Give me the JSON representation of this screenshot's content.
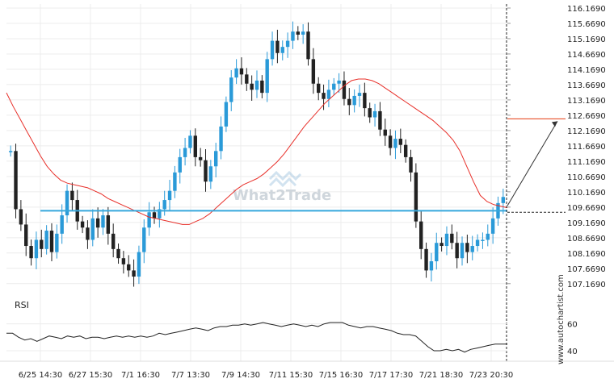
{
  "chart_data": {
    "type": "candlestick",
    "y_ticks": [
      "116.1690",
      "115.6690",
      "115.1690",
      "114.6690",
      "114.1690",
      "113.6690",
      "113.1690",
      "112.6690",
      "112.1690",
      "111.6690",
      "111.1690",
      "110.6690",
      "110.1690",
      "109.6690",
      "109.1690",
      "108.6690",
      "108.1690",
      "107.6690",
      "107.1690"
    ],
    "ylim": [
      106.9,
      116.3
    ],
    "x_ticks": [
      "6/25 14:30",
      "6/27 15:30",
      "7/1 16:30",
      "7/7 13:30",
      "7/9 14:30",
      "7/11 15:30",
      "7/15 16:30",
      "7/17 17:30",
      "7/21 18:30",
      "7/23 20:30"
    ],
    "close": [
      111.5,
      109.6,
      109.1,
      108.4,
      108.0,
      108.6,
      108.3,
      108.9,
      108.2,
      108.8,
      109.4,
      110.2,
      109.9,
      109.2,
      109.0,
      108.6,
      109.3,
      109.0,
      109.4,
      108.8,
      108.3,
      108.0,
      107.8,
      107.6,
      107.4,
      108.2,
      109.0,
      109.5,
      109.3,
      109.6,
      109.9,
      110.2,
      110.8,
      111.3,
      111.6,
      112.0,
      111.3,
      111.2,
      110.5,
      111.0,
      111.5,
      112.3,
      113.1,
      113.9,
      114.2,
      114.0,
      113.7,
      113.5,
      113.8,
      113.4,
      114.5,
      115.1,
      114.7,
      114.9,
      115.1,
      115.4,
      115.3,
      115.4,
      114.5,
      113.7,
      113.4,
      113.2,
      113.5,
      113.7,
      113.8,
      113.2,
      113.0,
      113.3,
      113.4,
      112.9,
      112.6,
      112.8,
      112.2,
      112.0,
      111.6,
      111.9,
      111.7,
      111.3,
      110.8,
      109.2,
      108.3,
      107.6,
      107.9,
      108.5,
      108.4,
      108.8,
      108.5,
      108.0,
      108.5,
      108.2,
      108.4,
      108.6,
      108.6,
      108.8,
      109.3,
      109.8,
      110.0
    ],
    "ma_line": [
      113.4,
      112.95,
      112.55,
      112.15,
      111.75,
      111.35,
      111.0,
      110.75,
      110.55,
      110.45,
      110.4,
      110.35,
      110.3,
      110.2,
      110.1,
      109.95,
      109.85,
      109.75,
      109.65,
      109.55,
      109.45,
      109.35,
      109.3,
      109.25,
      109.2,
      109.15,
      109.1,
      109.1,
      109.2,
      109.3,
      109.45,
      109.65,
      109.85,
      110.05,
      110.25,
      110.4,
      110.5,
      110.6,
      110.75,
      110.95,
      111.15,
      111.4,
      111.7,
      112.0,
      112.3,
      112.55,
      112.8,
      113.05,
      113.25,
      113.45,
      113.65,
      113.8,
      113.85,
      113.85,
      113.8,
      113.7,
      113.55,
      113.4,
      113.25,
      113.1,
      112.95,
      112.8,
      112.65,
      112.5,
      112.3,
      112.1,
      111.85,
      111.5,
      111.0,
      110.5,
      110.05,
      109.85,
      109.75,
      109.7,
      109.65
    ],
    "support_level": 109.55,
    "current_price": 109.5,
    "forecast_level": 112.55,
    "rsi": {
      "label": "RSI",
      "ylim": [
        34,
        70
      ],
      "ticks": [
        "60",
        "40"
      ],
      "values": [
        53,
        53,
        50,
        48,
        49,
        47,
        49,
        51,
        50,
        49,
        51,
        50,
        51,
        49,
        50,
        50,
        49,
        50,
        51,
        50,
        51,
        50,
        51,
        50,
        51,
        53,
        52,
        53,
        54,
        55,
        56,
        57,
        56,
        55,
        57,
        58,
        58,
        59,
        59,
        60,
        59,
        60,
        61,
        60,
        59,
        58,
        59,
        60,
        59,
        58,
        59,
        58,
        60,
        61,
        61,
        61,
        59,
        58,
        57,
        58,
        58,
        57,
        56,
        55,
        53,
        52,
        52,
        51,
        47,
        43,
        40,
        40,
        41,
        40,
        41,
        39,
        41,
        42,
        43,
        44,
        45,
        45,
        45
      ]
    }
  },
  "watermark": {
    "text": "What2Trade"
  },
  "source": {
    "text": "www.autochartist.com"
  }
}
